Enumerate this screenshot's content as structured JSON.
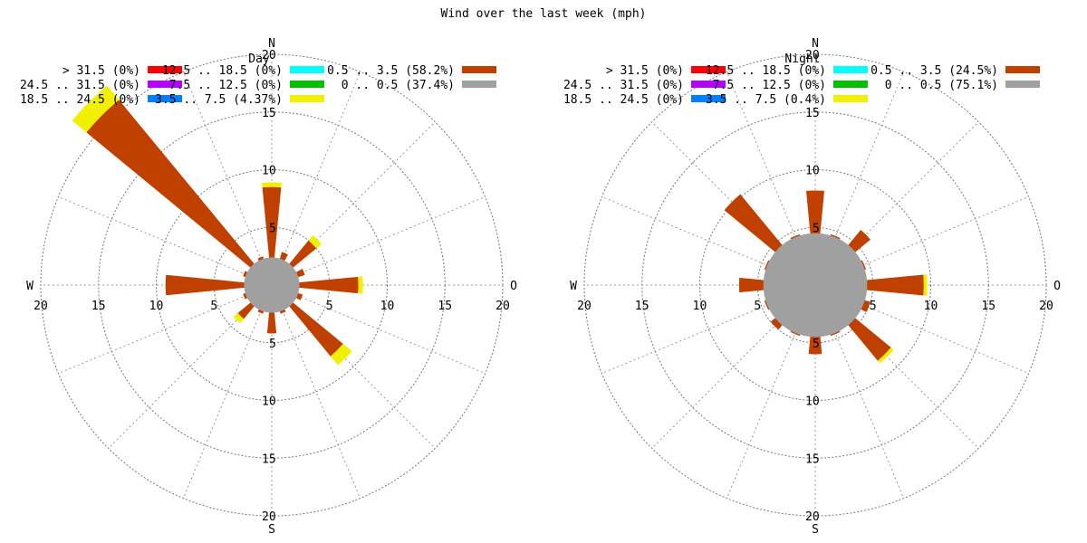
{
  "chart_data": {
    "type": "wind-rose",
    "title": "Wind over the last week (mph)",
    "compass": {
      "N": "N",
      "E": "O",
      "S": "S",
      "W": "W"
    },
    "ring_values": [
      5,
      10,
      15,
      20
    ],
    "r_max": 20,
    "directions": 16,
    "colors": {
      ">31.5": "#ff0000",
      "24.5-31.5": "#b400ff",
      "18.5-24.5": "#0080ff",
      "12.5-18.5": "#00ffff",
      "7.5-12.5": "#00c000",
      "3.5-7.5": "#f0f000",
      "0.5-3.5": "#c04000",
      "calm": "#a0a0a0"
    },
    "roses": [
      {
        "name": "Day",
        "calm_radius": 2.4,
        "legend": [
          {
            "label": "> 31.5 (0%)",
            "color": "#ff0000"
          },
          {
            "label": "24.5 .. 31.5 (0%)",
            "color": "#b400ff"
          },
          {
            "label": "18.5 .. 24.5 (0%)",
            "color": "#0080ff"
          },
          {
            "label": "12.5 .. 18.5 (0%)",
            "color": "#00ffff"
          },
          {
            "label": "7.5 .. 12.5 (0%)",
            "color": "#00c000"
          },
          {
            "label": "3.5 .. 7.5 (4.37%)",
            "color": "#f0f000"
          },
          {
            "label": "0.5 .. 3.5 (58.2%)",
            "color": "#c04000"
          },
          {
            "label": "0 .. 0.5 (37.4%)",
            "color": "#a0a0a0"
          }
        ],
        "sectors": [
          {
            "dir": 0,
            "base": 8.5,
            "yellow": 0.4
          },
          {
            "dir": 22.5,
            "base": 3.0,
            "yellow": 0
          },
          {
            "dir": 45,
            "base": 5.0,
            "yellow": 0.6
          },
          {
            "dir": 67.5,
            "base": 3.0,
            "yellow": 0
          },
          {
            "dir": 90,
            "base": 7.5,
            "yellow": 0.4
          },
          {
            "dir": 112.5,
            "base": 2.8,
            "yellow": 0
          },
          {
            "dir": 135,
            "base": 8.0,
            "yellow": 1.0
          },
          {
            "dir": 157.5,
            "base": 2.6,
            "yellow": 0
          },
          {
            "dir": 180,
            "base": 4.2,
            "yellow": 0
          },
          {
            "dir": 202.5,
            "base": 2.6,
            "yellow": 0
          },
          {
            "dir": 225,
            "base": 3.8,
            "yellow": 0.5
          },
          {
            "dir": 247.5,
            "base": 2.6,
            "yellow": 0
          },
          {
            "dir": 270,
            "base": 9.2,
            "yellow": 0
          },
          {
            "dir": 292.5,
            "base": 2.6,
            "yellow": 0
          },
          {
            "dir": 315,
            "base": 20.8,
            "yellow": 1.6
          },
          {
            "dir": 337.5,
            "base": 2.6,
            "yellow": 0
          }
        ]
      },
      {
        "name": "Night",
        "calm_radius": 4.5,
        "legend": [
          {
            "label": "> 31.5 (0%)",
            "color": "#ff0000"
          },
          {
            "label": "24.5 .. 31.5 (0%)",
            "color": "#b400ff"
          },
          {
            "label": "18.5 .. 24.5 (0%)",
            "color": "#0080ff"
          },
          {
            "label": "12.5 .. 18.5 (0%)",
            "color": "#00ffff"
          },
          {
            "label": "7.5 .. 12.5 (0%)",
            "color": "#00c000"
          },
          {
            "label": "3.5 .. 7.5 (0.4%)",
            "color": "#f0f000"
          },
          {
            "label": "0.5 .. 3.5 (24.5%)",
            "color": "#c04000"
          },
          {
            "label": "0 .. 0.5 (75.1%)",
            "color": "#a0a0a0"
          }
        ],
        "sectors": [
          {
            "dir": 0,
            "base": 8.2,
            "yellow": 0
          },
          {
            "dir": 22.5,
            "base": 4.6,
            "yellow": 0
          },
          {
            "dir": 45,
            "base": 6.2,
            "yellow": 0
          },
          {
            "dir": 67.5,
            "base": 4.6,
            "yellow": 0
          },
          {
            "dir": 90,
            "base": 9.4,
            "yellow": 0.3
          },
          {
            "dir": 112.5,
            "base": 5.0,
            "yellow": 0
          },
          {
            "dir": 135,
            "base": 8.5,
            "yellow": 0.3
          },
          {
            "dir": 157.5,
            "base": 4.6,
            "yellow": 0
          },
          {
            "dir": 180,
            "base": 6.0,
            "yellow": 0
          },
          {
            "dir": 202.5,
            "base": 4.6,
            "yellow": 0
          },
          {
            "dir": 225,
            "base": 5.0,
            "yellow": 0
          },
          {
            "dir": 247.5,
            "base": 4.6,
            "yellow": 0
          },
          {
            "dir": 270,
            "base": 6.6,
            "yellow": 0
          },
          {
            "dir": 292.5,
            "base": 4.6,
            "yellow": 0
          },
          {
            "dir": 315,
            "base": 10.2,
            "yellow": 0
          },
          {
            "dir": 337.5,
            "base": 4.6,
            "yellow": 0
          }
        ]
      }
    ]
  }
}
